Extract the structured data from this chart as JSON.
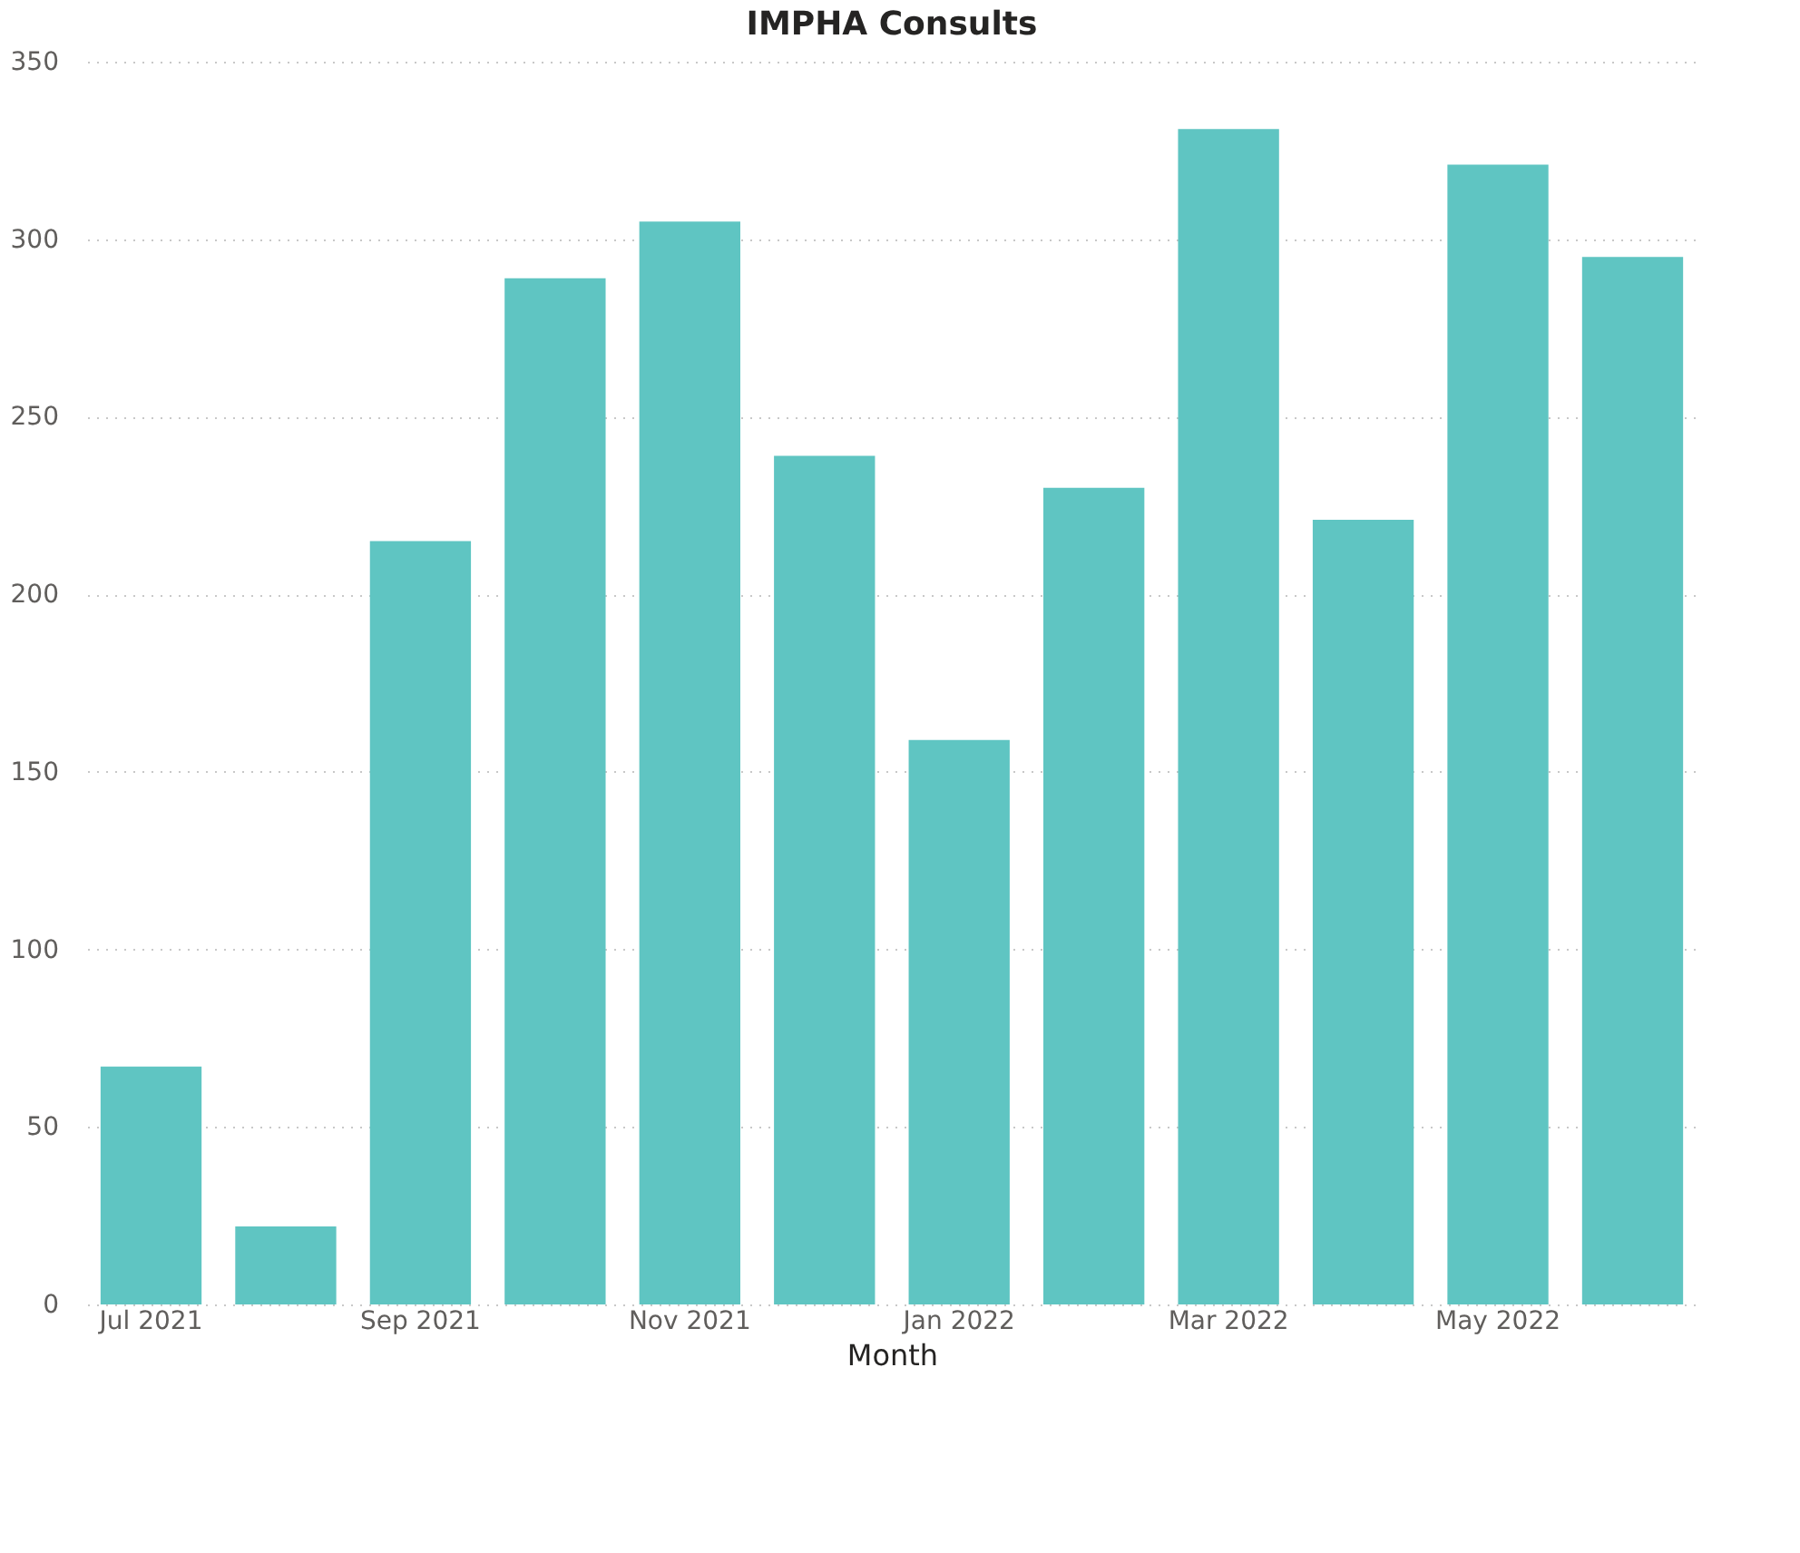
{
  "chart_data": {
    "type": "bar",
    "title": "IMPHA Consults",
    "xlabel": "Month",
    "categories": [
      "Jul 2021",
      null,
      "Sep 2021",
      null,
      "Nov 2021",
      null,
      "Jan 2022",
      null,
      "Mar 2022",
      null,
      "May 2022",
      null
    ],
    "values": [
      67,
      22,
      215,
      289,
      305,
      239,
      159,
      230,
      331,
      221,
      321,
      295
    ],
    "color": "#5fc5c2",
    "ylim": [
      0,
      350
    ],
    "yticks": [
      0,
      50,
      100,
      150,
      200,
      250,
      300,
      350
    ],
    "grid": "y"
  }
}
